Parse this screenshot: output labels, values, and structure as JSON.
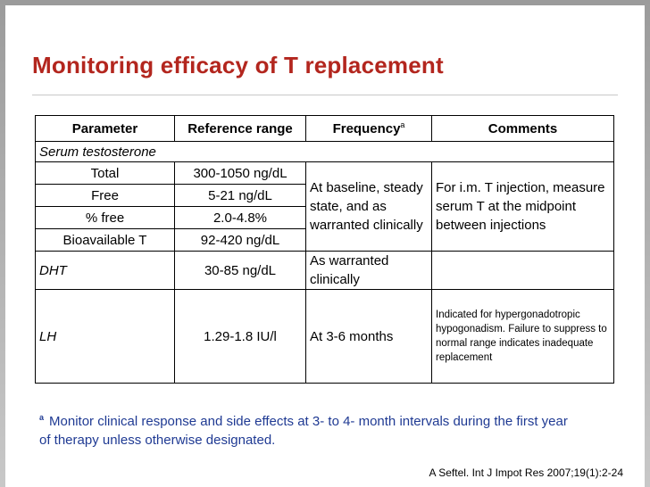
{
  "slide": {
    "title": "Monitoring efficacy of T replacement",
    "citation": "A Seftel. Int J Impot Res 2007;19(1):2-24"
  },
  "table": {
    "headers": {
      "parameter": "Parameter",
      "reference_range": "Reference range",
      "frequency": "Frequency",
      "frequency_sup": "a",
      "comments": "Comments"
    },
    "section_label": "Serum testosterone",
    "serum_rows": [
      {
        "parameter": "Total",
        "range": "300-1050 ng/dL"
      },
      {
        "parameter": "Free",
        "range": "5-21 ng/dL"
      },
      {
        "parameter": "% free",
        "range": "2.0-4.8%"
      },
      {
        "parameter": "Bioavailable T",
        "range": "92-420 ng/dL"
      }
    ],
    "serum_frequency": "At baseline, steady state, and as warranted clinically",
    "serum_comment": "For i.m. T injection, measure serum T at the midpoint between injections",
    "dht": {
      "parameter": "DHT",
      "range": "30-85 ng/dL",
      "frequency": "As warranted clinically",
      "comment": ""
    },
    "lh": {
      "parameter": "LH",
      "range": "1.29-1.8 IU/l",
      "frequency": "At 3-6 months",
      "comment": "Indicated for hypergonadotropic hypogonadism. Failure to suppress to normal range indicates inadequate replacement"
    }
  },
  "footnote": {
    "marker": "a",
    "text": "Monitor clinical response and side effects at 3- to 4- month intervals during the first year of therapy unless otherwise designated."
  },
  "colors": {
    "title": "#b3261e",
    "footnote": "#1f3a93",
    "frame": "#9b9b9b"
  }
}
